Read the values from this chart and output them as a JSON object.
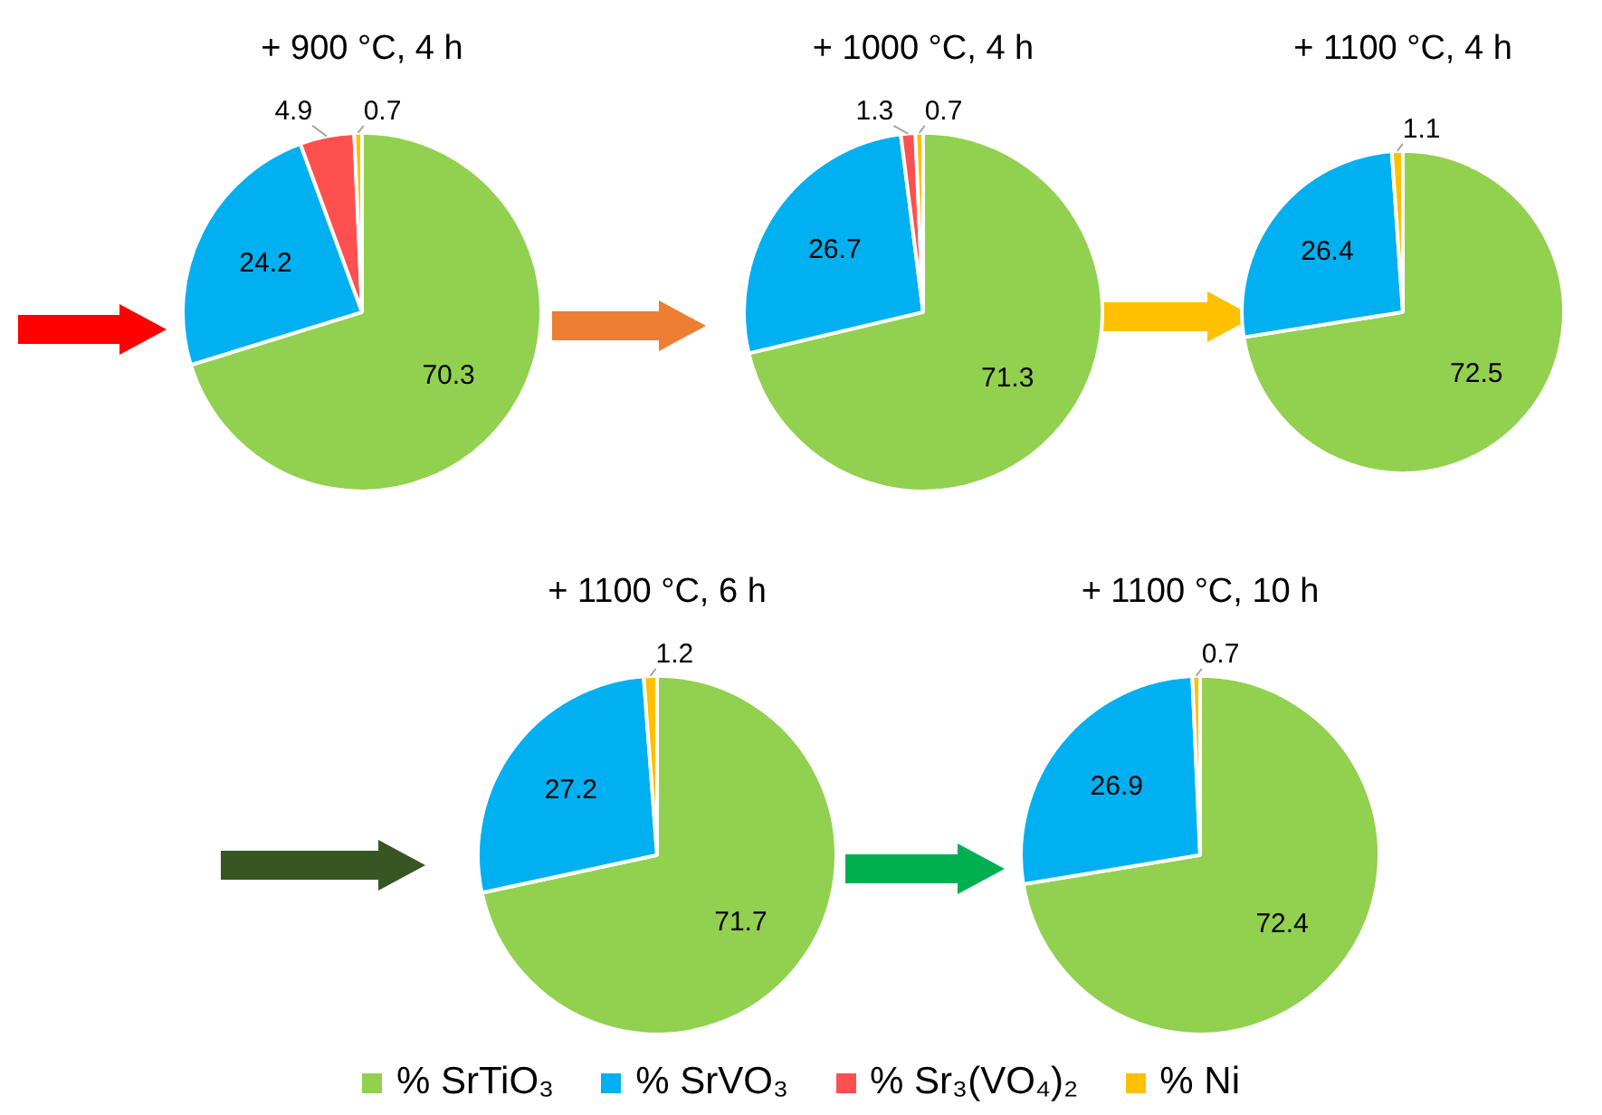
{
  "chart_data": [
    {
      "type": "pie",
      "title": "+ 900 °C, 4 h",
      "categories": [
        "% SrTiO₃",
        "% SrVO₃",
        "% Sr₃(VO₄)₂",
        "% Ni"
      ],
      "values": [
        70.3,
        24.2,
        4.9,
        0.7
      ],
      "colors": [
        "#92d050",
        "#00b0f0",
        "#ff5050",
        "#ffc000"
      ],
      "data_labels": true,
      "legend": "bottom"
    },
    {
      "type": "pie",
      "title": "+ 1000 °C, 4 h",
      "categories": [
        null,
        null,
        null,
        null
      ],
      "values": [
        71.3,
        26.7,
        1.3,
        0.7
      ],
      "colors": [
        "#92d050",
        "#00b0f0",
        "#ff5050",
        "#ffc000"
      ],
      "data_labels": true
    },
    {
      "type": "pie",
      "title": "+ 1100 °C, 4 h",
      "categories": [
        null,
        null,
        null,
        null
      ],
      "values": [
        72.5,
        26.4,
        null,
        1.1
      ],
      "colors": [
        "#92d050",
        "#00b0f0",
        "#ff5050",
        "#ffc000"
      ],
      "data_labels": true
    },
    {
      "type": "pie",
      "title": "+ 1100 °C, 6 h",
      "categories": [
        null,
        null,
        null,
        null
      ],
      "values": [
        71.7,
        27.2,
        null,
        1.2
      ],
      "colors": [
        "#92d050",
        "#00b0f0",
        "#ff5050",
        "#ffc000"
      ],
      "data_labels": true
    },
    {
      "type": "pie",
      "title": "+ 1100 °C, 10 h",
      "categories": [
        null,
        null,
        null,
        null
      ],
      "values": [
        72.4,
        26.9,
        null,
        0.7
      ],
      "colors": [
        "#92d050",
        "#00b0f0",
        "#ff5050",
        "#ffc000"
      ],
      "data_labels": true
    }
  ]
}
